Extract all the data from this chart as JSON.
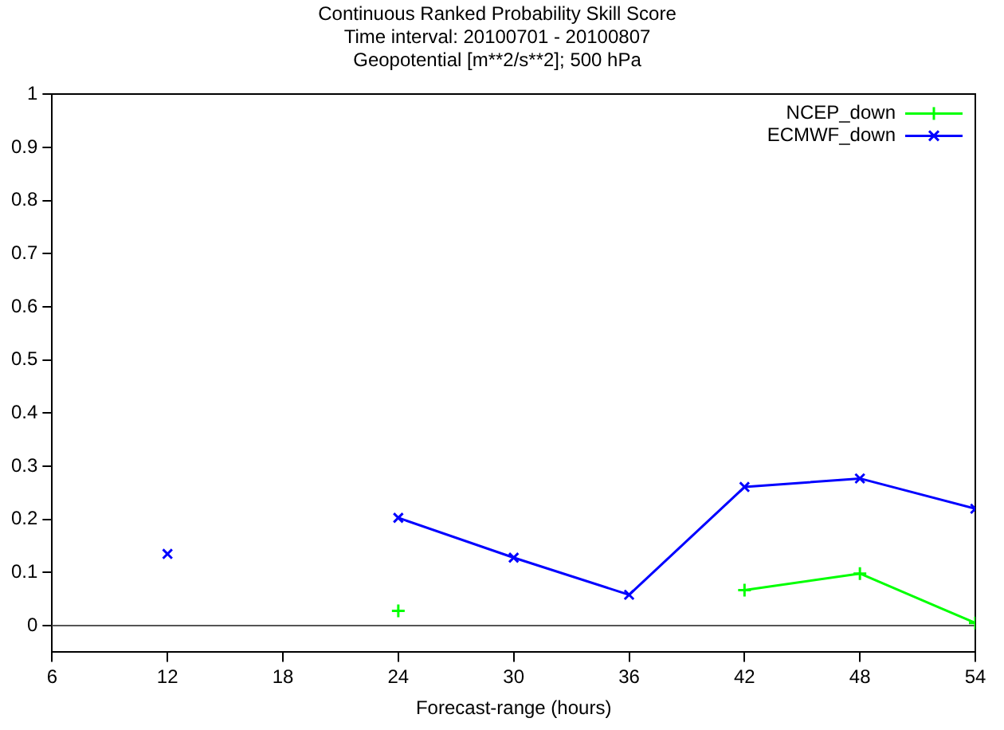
{
  "chart_data": {
    "type": "line",
    "title": "Continuous Ranked Probability Skill Score",
    "subtitle": "Time interval: 20100701 - 20100807\nGeopotential [m**2/s**2]; 500 hPa",
    "xlabel": "Forecast-range (hours)",
    "series": [
      {
        "name": "NCEP_down",
        "color": "#00ff00",
        "marker": "cross",
        "x": [
          24,
          30,
          36,
          42,
          48,
          54
        ],
        "values": [
          0.028,
          null,
          null,
          0.067,
          0.098,
          0.005
        ]
      },
      {
        "name": "ECMWF_down",
        "color": "#0000ff",
        "marker": "x",
        "x": [
          12,
          18,
          24,
          30,
          36,
          42,
          48,
          54
        ],
        "values": [
          0.135,
          null,
          0.203,
          0.128,
          0.058,
          0.261,
          0.277,
          0.22
        ]
      }
    ],
    "xlim": [
      6,
      54
    ],
    "xticks": [
      6,
      12,
      18,
      24,
      30,
      36,
      42,
      48,
      54
    ],
    "ylim": [
      -0.05,
      1
    ],
    "yticks": [
      0,
      0.1,
      0.2,
      0.3,
      0.4,
      0.5,
      0.6,
      0.7,
      0.8,
      0.9,
      1
    ],
    "ref_lines": [
      {
        "axis": "y",
        "value": 0,
        "color": "#555555"
      }
    ],
    "grid": false,
    "legend": "top right"
  }
}
